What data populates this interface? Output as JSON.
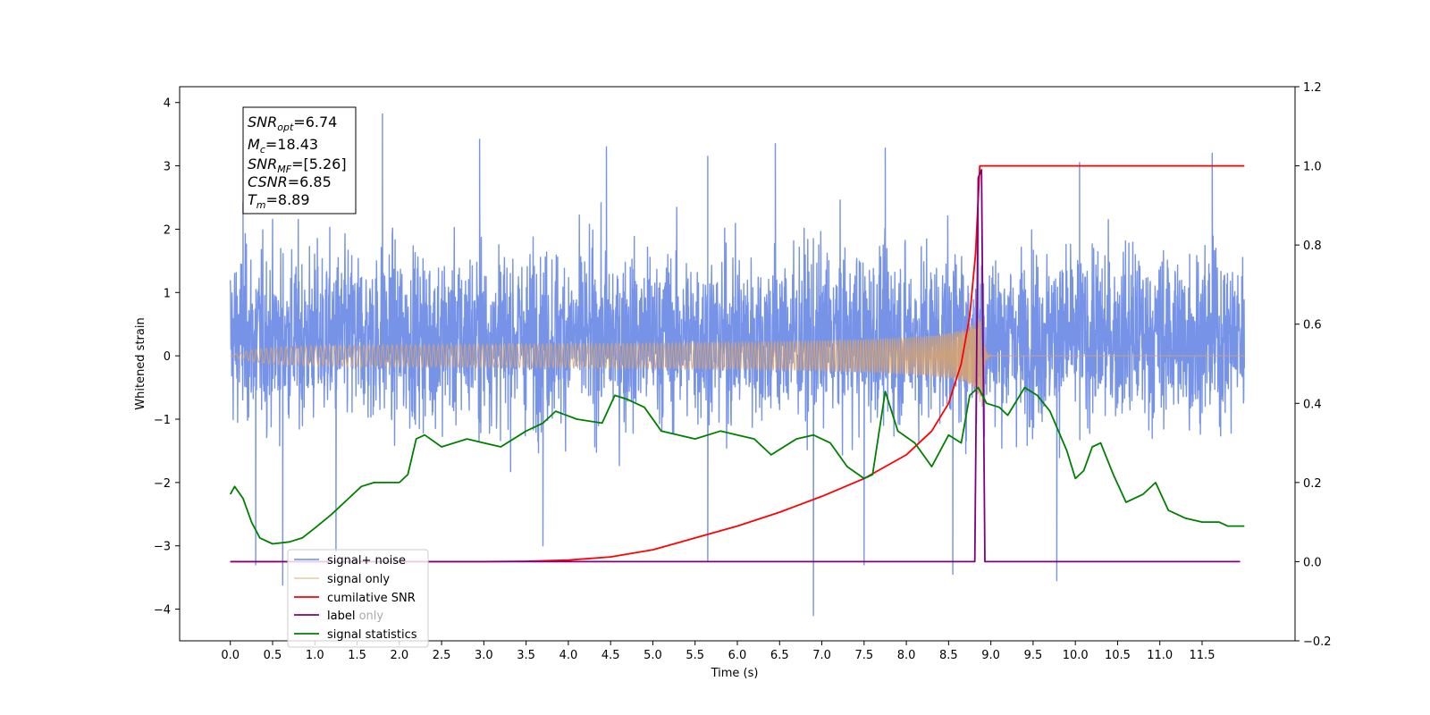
{
  "chart_data": {
    "type": "line",
    "xlabel": "Time (s)",
    "ylabel": "Whitened strain",
    "xlim": [
      -0.6,
      12.6
    ],
    "ylim": [
      -4.5,
      4.25
    ],
    "y2lim": [
      -0.2,
      1.2
    ],
    "x_ticks": [
      0.0,
      0.5,
      1.0,
      1.5,
      2.0,
      2.5,
      3.0,
      3.5,
      4.0,
      4.5,
      5.0,
      5.5,
      6.0,
      6.5,
      7.0,
      7.5,
      8.0,
      8.5,
      9.0,
      9.5,
      10.0,
      10.5,
      11.0,
      11.5
    ],
    "x_tick_labels": [
      "0.0",
      "0.5",
      "1.0",
      "1.5",
      "2.0",
      "2.5",
      "3.0",
      "3.5",
      "4.0",
      "4.5",
      "5.0",
      "5.5",
      "6.0",
      "6.5",
      "7.0",
      "7.5",
      "8.0",
      "8.5",
      "9.0",
      "9.5",
      "10.0",
      "10.5",
      "11.0",
      "11.5"
    ],
    "y_ticks": [
      -4,
      -3,
      -2,
      -1,
      0,
      1,
      2,
      3,
      4
    ],
    "y_tick_labels": [
      "−4",
      "−3",
      "−2",
      "−1",
      "0",
      "1",
      "2",
      "3",
      "4"
    ],
    "y2_ticks": [
      -0.2,
      0.0,
      0.2,
      0.4,
      0.6,
      0.8,
      1.0,
      1.2
    ],
    "y2_tick_labels": [
      "−0.2",
      "0.0",
      "0.2",
      "0.4",
      "0.6",
      "0.8",
      "1.0",
      "1.2"
    ],
    "grid": false,
    "legend_placement": "lower-left",
    "annotation": {
      "snr_opt": {
        "base": "SNR",
        "sub": "opt",
        "value": "=6.74"
      },
      "mc": {
        "base": "M",
        "sub": "c",
        "value": "=18.43"
      },
      "snr_mf": {
        "base": "SNR",
        "sub": "MF",
        "value": "=[5.26]"
      },
      "csnr": {
        "base": "CSNR",
        "value": "=6.85"
      },
      "tm": {
        "base": "T",
        "sub": "m",
        "value": "=8.89"
      }
    },
    "series": [
      {
        "name": "signal+ noise",
        "color": "#6f8de6",
        "axis": "left",
        "kind": "noise",
        "x_range": [
          0.0,
          12.0
        ],
        "mean": 0.3,
        "band": [
          -1.7,
          2.3
        ],
        "extreme_points": [
          [
            0.15,
            2.42
          ],
          [
            0.3,
            -3.3
          ],
          [
            0.62,
            -3.62
          ],
          [
            1.25,
            -3.1
          ],
          [
            1.8,
            3.82
          ],
          [
            2.95,
            3.42
          ],
          [
            3.7,
            -3.0
          ],
          [
            4.45,
            3.3
          ],
          [
            5.65,
            3.15
          ],
          [
            5.65,
            -3.25
          ],
          [
            6.45,
            3.35
          ],
          [
            6.9,
            -4.1
          ],
          [
            7.5,
            -3.3
          ],
          [
            7.75,
            3.28
          ],
          [
            8.55,
            -3.45
          ],
          [
            8.85,
            2.35
          ],
          [
            9.78,
            -3.55
          ],
          [
            10.05,
            3.05
          ],
          [
            11.62,
            3.2
          ]
        ]
      },
      {
        "name": "signal only",
        "color": "#d4a373",
        "axis": "left",
        "kind": "chirp",
        "x_range": [
          0.0,
          12.0
        ],
        "merger_time": 8.89,
        "peak_amplitude": 0.6
      },
      {
        "name": "cumilative SNR",
        "color": "#ff0000",
        "axis": "right",
        "points": [
          [
            0.0,
            0.0
          ],
          [
            3.0,
            0.0
          ],
          [
            3.5,
            0.001
          ],
          [
            4.0,
            0.004
          ],
          [
            4.5,
            0.012
          ],
          [
            5.0,
            0.03
          ],
          [
            5.5,
            0.06
          ],
          [
            6.0,
            0.09
          ],
          [
            6.5,
            0.125
          ],
          [
            7.0,
            0.165
          ],
          [
            7.5,
            0.21
          ],
          [
            8.0,
            0.27
          ],
          [
            8.3,
            0.33
          ],
          [
            8.5,
            0.4
          ],
          [
            8.65,
            0.5
          ],
          [
            8.75,
            0.62
          ],
          [
            8.82,
            0.78
          ],
          [
            8.87,
            1.0
          ],
          [
            12.0,
            1.0
          ]
        ]
      },
      {
        "name": "label",
        "color": "#800080",
        "axis": "right",
        "points": [
          [
            0.0,
            0.0
          ],
          [
            8.81,
            0.0
          ],
          [
            8.85,
            0.97
          ],
          [
            8.89,
            0.99
          ],
          [
            8.93,
            0.0
          ],
          [
            11.95,
            0.0
          ]
        ]
      },
      {
        "name": "label only",
        "color": "#bbbbbb",
        "axis": "right",
        "points": []
      },
      {
        "name": "signal statistics",
        "color": "#008000",
        "axis": "right",
        "points": [
          [
            0.0,
            0.17
          ],
          [
            0.05,
            0.19
          ],
          [
            0.15,
            0.16
          ],
          [
            0.25,
            0.1
          ],
          [
            0.35,
            0.06
          ],
          [
            0.5,
            0.045
          ],
          [
            0.7,
            0.05
          ],
          [
            0.85,
            0.06
          ],
          [
            1.0,
            0.085
          ],
          [
            1.2,
            0.12
          ],
          [
            1.4,
            0.16
          ],
          [
            1.55,
            0.19
          ],
          [
            1.7,
            0.2
          ],
          [
            2.0,
            0.2
          ],
          [
            2.1,
            0.22
          ],
          [
            2.2,
            0.31
          ],
          [
            2.3,
            0.32
          ],
          [
            2.5,
            0.29
          ],
          [
            2.8,
            0.31
          ],
          [
            3.0,
            0.3
          ],
          [
            3.2,
            0.29
          ],
          [
            3.5,
            0.33
          ],
          [
            3.7,
            0.35
          ],
          [
            3.85,
            0.38
          ],
          [
            4.1,
            0.36
          ],
          [
            4.4,
            0.35
          ],
          [
            4.55,
            0.42
          ],
          [
            4.7,
            0.41
          ],
          [
            4.9,
            0.39
          ],
          [
            5.1,
            0.33
          ],
          [
            5.5,
            0.31
          ],
          [
            5.8,
            0.33
          ],
          [
            6.0,
            0.32
          ],
          [
            6.2,
            0.31
          ],
          [
            6.4,
            0.27
          ],
          [
            6.7,
            0.31
          ],
          [
            6.9,
            0.32
          ],
          [
            7.1,
            0.3
          ],
          [
            7.3,
            0.24
          ],
          [
            7.5,
            0.21
          ],
          [
            7.6,
            0.22
          ],
          [
            7.75,
            0.43
          ],
          [
            7.9,
            0.33
          ],
          [
            8.1,
            0.3
          ],
          [
            8.3,
            0.24
          ],
          [
            8.5,
            0.32
          ],
          [
            8.65,
            0.3
          ],
          [
            8.75,
            0.42
          ],
          [
            8.85,
            0.44
          ],
          [
            8.95,
            0.4
          ],
          [
            9.1,
            0.39
          ],
          [
            9.2,
            0.37
          ],
          [
            9.4,
            0.44
          ],
          [
            9.55,
            0.42
          ],
          [
            9.7,
            0.38
          ],
          [
            9.9,
            0.28
          ],
          [
            10.0,
            0.21
          ],
          [
            10.1,
            0.23
          ],
          [
            10.2,
            0.29
          ],
          [
            10.3,
            0.3
          ],
          [
            10.45,
            0.22
          ],
          [
            10.6,
            0.15
          ],
          [
            10.8,
            0.17
          ],
          [
            10.95,
            0.2
          ],
          [
            11.1,
            0.13
          ],
          [
            11.3,
            0.11
          ],
          [
            11.5,
            0.1
          ],
          [
            11.7,
            0.1
          ],
          [
            11.8,
            0.09
          ],
          [
            12.0,
            0.09
          ]
        ]
      }
    ]
  }
}
